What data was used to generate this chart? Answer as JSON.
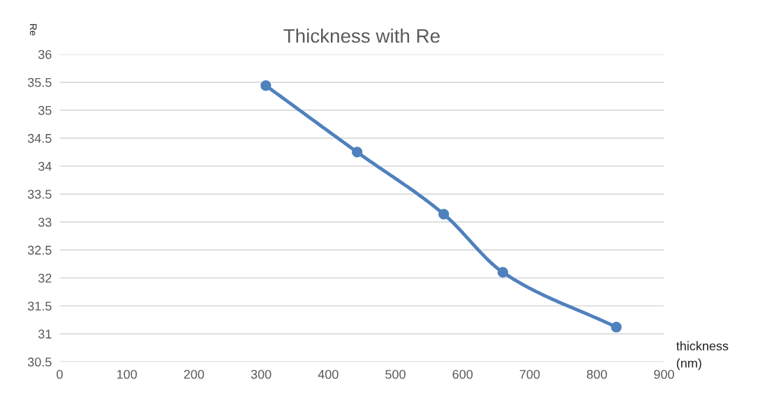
{
  "chart_data": {
    "type": "line",
    "title": "Thickness with Re",
    "xlabel": "thickness\n(nm)",
    "ylabel": "Re",
    "x": [
      307,
      443,
      572,
      660,
      829
    ],
    "series": [
      {
        "color": "#4f81bd",
        "values": [
          35.44,
          34.25,
          33.14,
          32.1,
          31.12
        ]
      }
    ],
    "xlim": [
      0,
      900
    ],
    "xticks": [
      0,
      100,
      200,
      300,
      400,
      500,
      600,
      700,
      800,
      900
    ],
    "ylim": [
      30.5,
      36
    ],
    "yticks": [
      30.5,
      31,
      31.5,
      32,
      32.5,
      33,
      33.5,
      34,
      34.5,
      35,
      35.5,
      36
    ],
    "grid": "y",
    "marker": "circle",
    "line_style": "solid",
    "legend": false
  }
}
